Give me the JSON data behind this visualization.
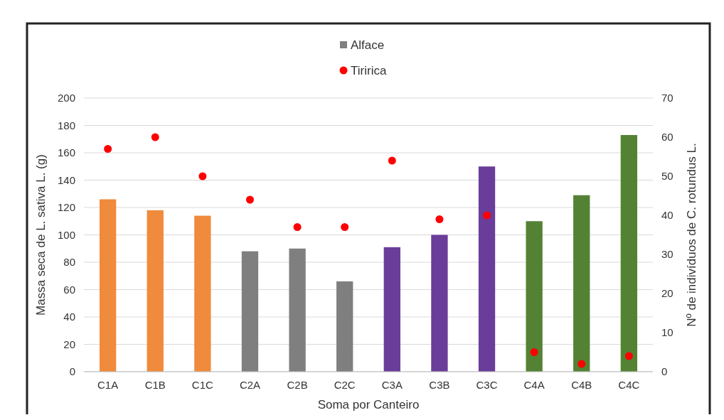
{
  "chart_data": {
    "type": "bar",
    "xlabel": "Soma por Canteiro",
    "ylabel": "Massa seca de L. sativa L. (g)",
    "y2label": "Nº de indivíduos de C. rotundus L.",
    "categories": [
      "C1A",
      "C1B",
      "C1C",
      "C2A",
      "C2B",
      "C2C",
      "C3A",
      "C3B",
      "C3C",
      "C4A",
      "C4B",
      "C4C"
    ],
    "series": [
      {
        "name": "Alface",
        "color": "#7f7f7f",
        "colors": [
          "#f08a3c",
          "#f08a3c",
          "#f08a3c",
          "#7f7f7f",
          "#7f7f7f",
          "#7f7f7f",
          "#6a3d9a",
          "#6a3d9a",
          "#6a3d9a",
          "#548235",
          "#548235",
          "#548235"
        ],
        "values": [
          126,
          118,
          114,
          88,
          90,
          66,
          91,
          100,
          150,
          110,
          129,
          173
        ]
      },
      {
        "name": "Tiririca",
        "type": "scatter",
        "axis": "y2",
        "color": "#ff0000",
        "values": [
          57,
          60,
          50,
          44,
          37,
          37,
          54,
          39,
          40,
          5,
          2,
          4
        ]
      }
    ],
    "ylim": [
      0,
      200
    ],
    "yticks": [
      0,
      20,
      40,
      60,
      80,
      100,
      120,
      140,
      160,
      180,
      200
    ],
    "y2lim": [
      0,
      70
    ],
    "y2ticks": [
      0,
      10,
      20,
      30,
      40,
      50,
      60,
      70
    ],
    "grid": "y",
    "legend": "top",
    "marker": "circle"
  }
}
